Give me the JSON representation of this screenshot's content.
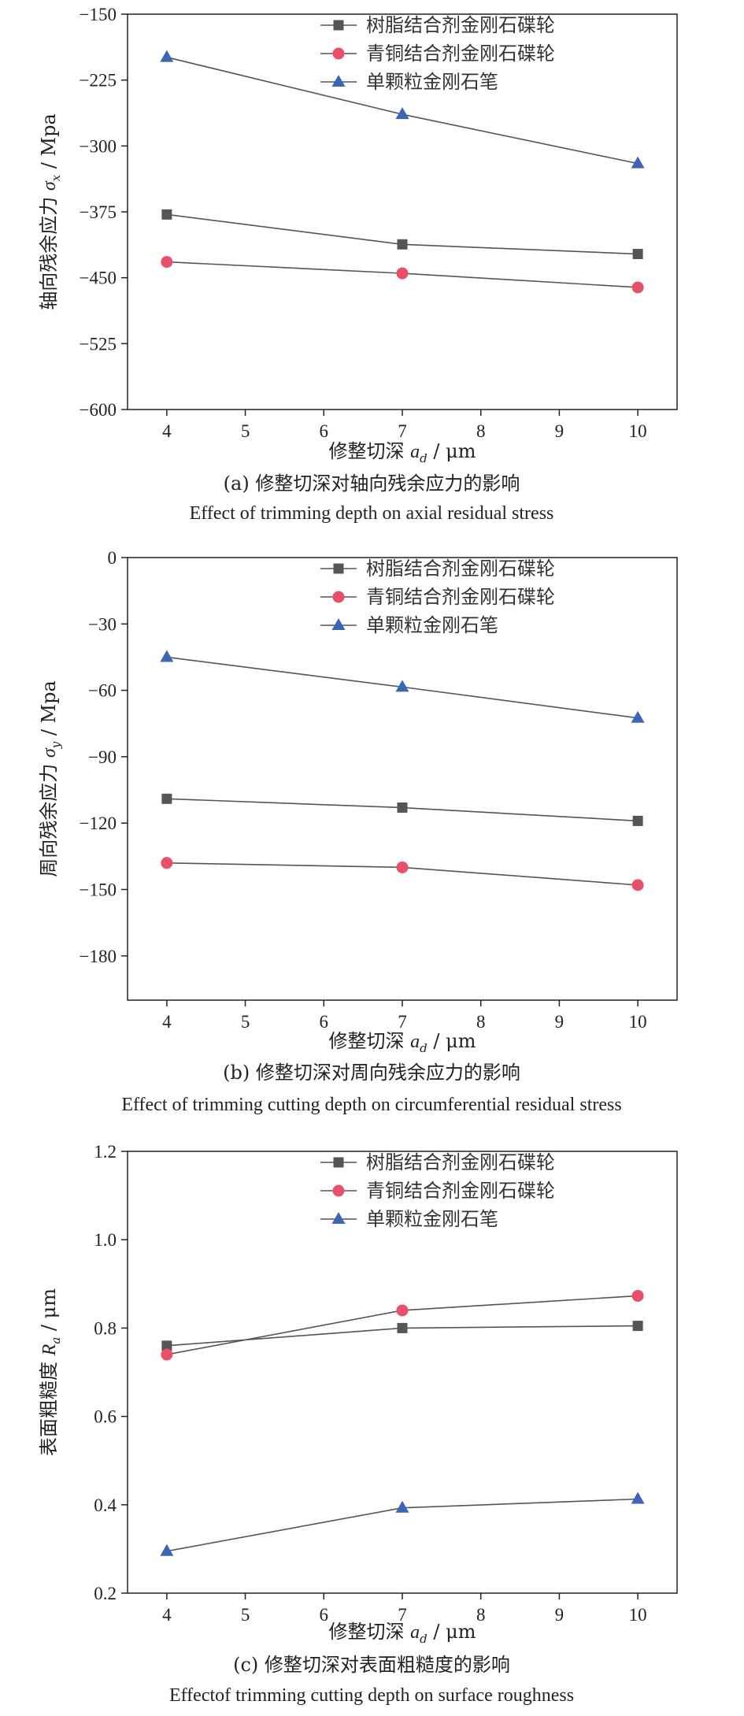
{
  "chart_data": [
    {
      "type": "line",
      "caption_cn": "(a) 修整切深对轴向残余应力的影响",
      "caption_en": "Effect of trimming depth on axial residual stress",
      "xlabel": {
        "main": "修整切深",
        "sym": "a",
        "sub": "d",
        "unit": " / μm"
      },
      "ylabel": {
        "main": "轴向残余应力",
        "sym": "σ",
        "sub": "x",
        "unit": " / Mpa"
      },
      "x": [
        4,
        7,
        10
      ],
      "xlim": [
        3.5,
        10.5
      ],
      "xticks": [
        "4",
        "5",
        "6",
        "7",
        "8",
        "9",
        "10"
      ],
      "ylim": [
        -600,
        -150
      ],
      "yticks": [
        "-150",
        "-225",
        "-300",
        "-375",
        "-450",
        "-525",
        "-600"
      ],
      "legend_position": "top-right",
      "series": [
        {
          "name": "树脂结合剂金刚石碟轮",
          "marker": "square",
          "color": "#555555",
          "values": [
            -378,
            -412,
            -423
          ]
        },
        {
          "name": "青铜结合剂金刚石碟轮",
          "marker": "circle",
          "color": "#e8506a",
          "values": [
            -432,
            -445,
            -461
          ]
        },
        {
          "name": "单颗粒金刚石笔",
          "marker": "triangle",
          "color": "#3b66b3",
          "values": [
            -199,
            -264,
            -320
          ]
        }
      ]
    },
    {
      "type": "line",
      "caption_cn": "(b) 修整切深对周向残余应力的影响",
      "caption_en": "Effect of trimming cutting depth on circumferential residual stress",
      "xlabel": {
        "main": "修整切深",
        "sym": "a",
        "sub": "d",
        "unit": " / μm"
      },
      "ylabel": {
        "main": "周向残余应力",
        "sym": "σ",
        "sub": "y",
        "unit": " / Mpa"
      },
      "x": [
        4,
        7,
        10
      ],
      "xlim": [
        3.5,
        10.5
      ],
      "xticks": [
        "4",
        "5",
        "6",
        "7",
        "8",
        "9",
        "10"
      ],
      "ylim": [
        -200,
        0
      ],
      "yticks": [
        "0",
        "-30",
        "-60",
        "-90",
        "-120",
        "-150",
        "-180"
      ],
      "legend_position": "top-right",
      "series": [
        {
          "name": "树脂结合剂金刚石碟轮",
          "marker": "square",
          "color": "#555555",
          "values": [
            -109,
            -113,
            -119
          ]
        },
        {
          "name": "青铜结合剂金刚石碟轮",
          "marker": "circle",
          "color": "#e8506a",
          "values": [
            -138,
            -140,
            -148
          ]
        },
        {
          "name": "单颗粒金刚石笔",
          "marker": "triangle",
          "color": "#3b66b3",
          "values": [
            -45,
            -58.5,
            -72.5
          ]
        }
      ]
    },
    {
      "type": "line",
      "caption_cn": "(c) 修整切深对表面粗糙度的影响",
      "caption_en": "Effectof trimming cutting depth on surface roughness",
      "xlabel": {
        "main": "修整切深",
        "sym": "a",
        "sub": "d",
        "unit": " / μm"
      },
      "ylabel": {
        "main": "表面粗糙度",
        "sym": "R",
        "sub": "a",
        "unit": " / μm"
      },
      "x": [
        4,
        7,
        10
      ],
      "xlim": [
        3.5,
        10.5
      ],
      "xticks": [
        "4",
        "5",
        "6",
        "7",
        "8",
        "9",
        "10"
      ],
      "ylim": [
        0.2,
        1.2
      ],
      "yticks": [
        "0.2",
        "0.4",
        "0.6",
        "0.8",
        "1.0",
        "1.2"
      ],
      "legend_position": "top-right",
      "series": [
        {
          "name": "树脂结合剂金刚石碟轮",
          "marker": "square",
          "color": "#555555",
          "values": [
            0.76,
            0.8,
            0.805
          ]
        },
        {
          "name": "青铜结合剂金刚石碟轮",
          "marker": "circle",
          "color": "#e8506a",
          "values": [
            0.74,
            0.84,
            0.873
          ]
        },
        {
          "name": "单颗粒金刚石笔",
          "marker": "triangle",
          "color": "#3b66b3",
          "values": [
            0.295,
            0.393,
            0.413
          ]
        }
      ]
    }
  ]
}
